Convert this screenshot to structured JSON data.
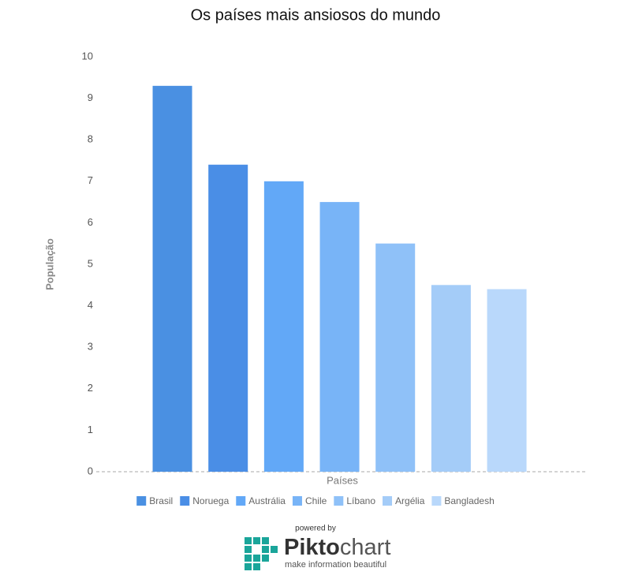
{
  "chart_data": {
    "type": "bar",
    "title": "Os países mais ansiosos do mundo",
    "categories": [
      "Brasil",
      "Noruega",
      "Austrália",
      "Chile",
      "Líbano",
      "Argélia",
      "Bangladesh"
    ],
    "values": [
      9.3,
      7.4,
      7.0,
      6.5,
      5.5,
      4.5,
      4.4
    ],
    "colors": [
      "#4a90e2",
      "#4a8ee6",
      "#62a8f7",
      "#78b4f7",
      "#8fc1f8",
      "#a4ccf8",
      "#b9d8fb"
    ],
    "x_label": "Países",
    "y_label": "População",
    "ylim": [
      0,
      10
    ],
    "yticks": [
      0,
      1,
      2,
      3,
      4,
      5,
      6,
      7,
      8,
      9,
      10
    ],
    "grid": false,
    "legend": "bottom"
  },
  "footer": {
    "powered": "powered by",
    "brand": [
      "Pikto",
      "chart"
    ],
    "tagline": "make information beautiful"
  }
}
